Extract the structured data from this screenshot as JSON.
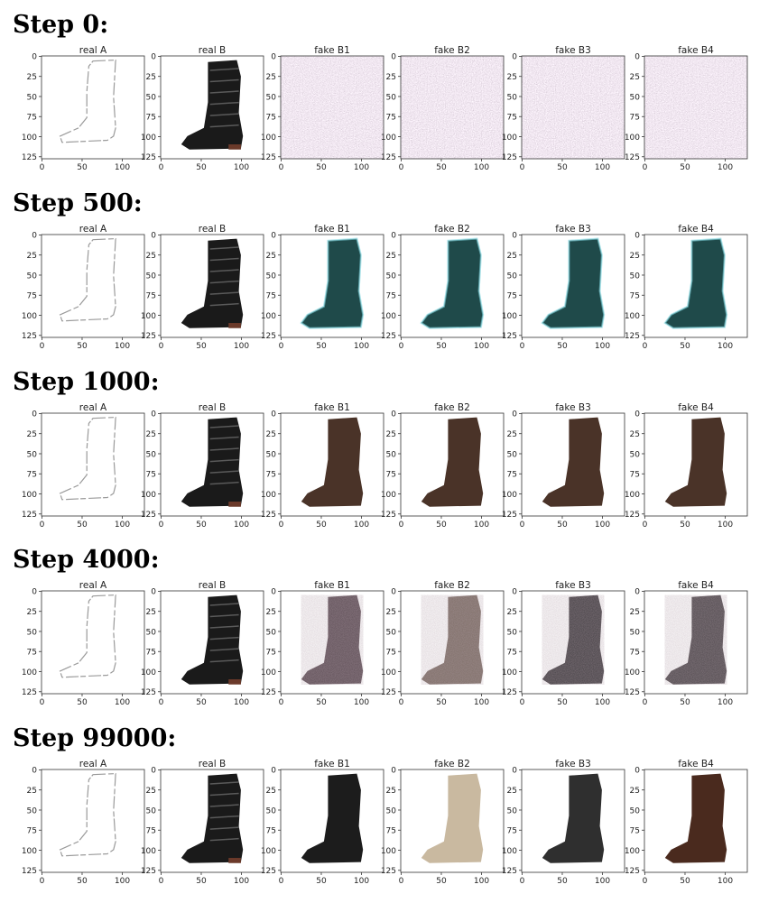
{
  "figure": {
    "rows": [
      {
        "title": "Step 0:",
        "stage": "noise",
        "panels": [
          {
            "title": "real A",
            "content": "sketch"
          },
          {
            "title": "real B",
            "content": "boot-photo"
          },
          {
            "title": "fake B1",
            "content": "noise"
          },
          {
            "title": "fake B2",
            "content": "noise"
          },
          {
            "title": "fake B3",
            "content": "noise"
          },
          {
            "title": "fake B4",
            "content": "noise"
          }
        ]
      },
      {
        "title": "Step 500:",
        "stage": "teal",
        "panels": [
          {
            "title": "real A",
            "content": "sketch"
          },
          {
            "title": "real B",
            "content": "boot-photo"
          },
          {
            "title": "fake B1",
            "content": "generated"
          },
          {
            "title": "fake B2",
            "content": "generated"
          },
          {
            "title": "fake B3",
            "content": "generated"
          },
          {
            "title": "fake B4",
            "content": "generated"
          }
        ]
      },
      {
        "title": "Step 1000:",
        "stage": "brown",
        "panels": [
          {
            "title": "real A",
            "content": "sketch"
          },
          {
            "title": "real B",
            "content": "boot-photo"
          },
          {
            "title": "fake B1",
            "content": "generated"
          },
          {
            "title": "fake B2",
            "content": "generated"
          },
          {
            "title": "fake B3",
            "content": "generated"
          },
          {
            "title": "fake B4",
            "content": "generated"
          }
        ]
      },
      {
        "title": "Step 4000:",
        "stage": "mixed",
        "panels": [
          {
            "title": "real A",
            "content": "sketch"
          },
          {
            "title": "real B",
            "content": "boot-photo"
          },
          {
            "title": "fake B1",
            "content": "generated"
          },
          {
            "title": "fake B2",
            "content": "generated"
          },
          {
            "title": "fake B3",
            "content": "generated"
          },
          {
            "title": "fake B4",
            "content": "generated"
          }
        ]
      },
      {
        "title": "Step 99000:",
        "stage": "final",
        "panels": [
          {
            "title": "real A",
            "content": "sketch"
          },
          {
            "title": "real B",
            "content": "boot-photo"
          },
          {
            "title": "fake B1",
            "content": "generated",
            "color": "#1c1c1c"
          },
          {
            "title": "fake B2",
            "content": "generated",
            "color": "#c9b9a0"
          },
          {
            "title": "fake B3",
            "content": "generated",
            "color": "#2f2f2f"
          },
          {
            "title": "fake B4",
            "content": "generated",
            "color": "#4a2a1e"
          }
        ]
      }
    ],
    "axes": {
      "y_ticks": [
        "0",
        "25",
        "50",
        "75",
        "100",
        "125"
      ],
      "x_ticks_wide": [
        "0",
        "50",
        "100"
      ],
      "x_ticks_narrow": [
        "50",
        "100"
      ]
    }
  },
  "colors": {
    "noise": "#8c7f8e",
    "teal": "#1f4a4a",
    "brown": "#4a3328",
    "boot": "#1a1a1a",
    "sketch": "#9a9a9a"
  }
}
